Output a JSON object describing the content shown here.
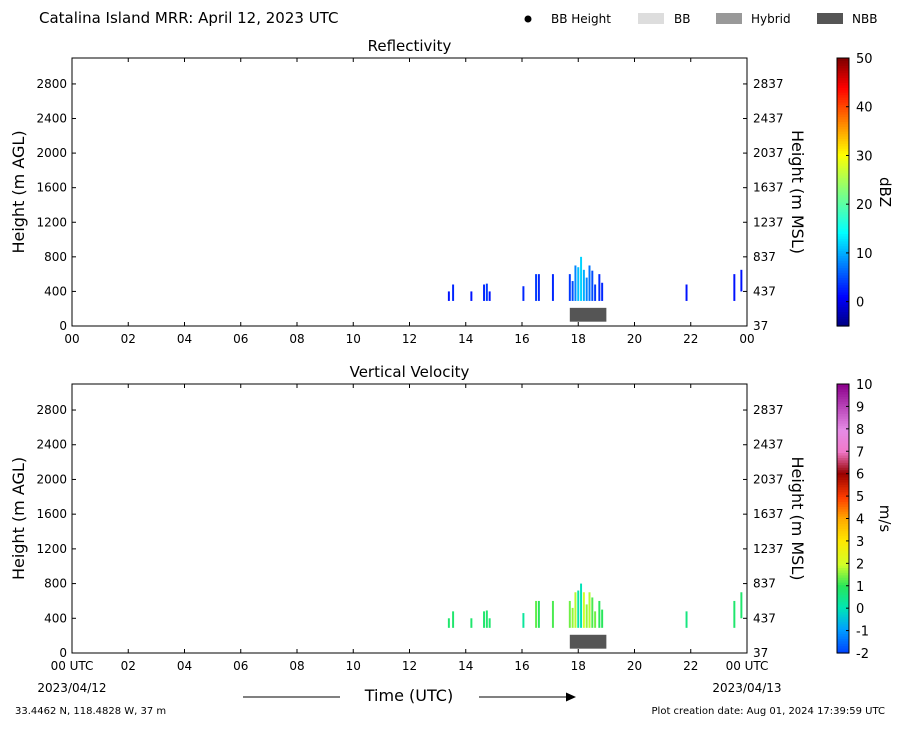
{
  "header": {
    "title": "Catalina Island MRR:  April 12, 2023 UTC",
    "legend": [
      {
        "label": "BB Height",
        "kind": "dot",
        "color": "#000000"
      },
      {
        "label": "BB",
        "kind": "swatch",
        "color": "#dddddd"
      },
      {
        "label": "Hybrid",
        "kind": "swatch",
        "color": "#999999"
      },
      {
        "label": "NBB",
        "kind": "swatch",
        "color": "#555555"
      }
    ]
  },
  "footer": {
    "location": "33.4462 N, 118.4828 W, 37 m",
    "creation": "Plot creation date: Aug 01, 2024 17:39:59 UTC",
    "time_label": "Time (UTC)",
    "date_start": "2023/04/12",
    "date_end": "2023/04/13"
  },
  "chart_data": [
    {
      "type": "heatmap",
      "title": "Reflectivity",
      "xlabel": "",
      "ylabel": "Height (m AGL)",
      "ylabel_right": "Height (m MSL)",
      "xlim": [
        0,
        24
      ],
      "ylim": [
        0,
        3100
      ],
      "x_ticks": [
        "00",
        "02",
        "04",
        "06",
        "08",
        "10",
        "12",
        "14",
        "16",
        "18",
        "20",
        "22",
        "00"
      ],
      "y_ticks": [
        0,
        400,
        800,
        1200,
        1600,
        2000,
        2400,
        2800
      ],
      "y_ticks_right": [
        37,
        437,
        837,
        1237,
        1637,
        2037,
        2437,
        2837
      ],
      "colorbar": {
        "label": "dBZ",
        "min": -5,
        "max": 50,
        "ticks": [
          0,
          10,
          20,
          30,
          40,
          50
        ],
        "colormap": "jet"
      },
      "columns": [
        {
          "t": 13.4,
          "bottom": 290,
          "top": 400,
          "value": 2
        },
        {
          "t": 13.55,
          "bottom": 290,
          "top": 480,
          "value": 3
        },
        {
          "t": 14.2,
          "bottom": 290,
          "top": 400,
          "value": 2
        },
        {
          "t": 14.65,
          "bottom": 290,
          "top": 480,
          "value": 3
        },
        {
          "t": 14.75,
          "bottom": 290,
          "top": 490,
          "value": 4
        },
        {
          "t": 14.85,
          "bottom": 290,
          "top": 400,
          "value": 2
        },
        {
          "t": 16.05,
          "bottom": 290,
          "top": 460,
          "value": 3
        },
        {
          "t": 16.5,
          "bottom": 290,
          "top": 600,
          "value": 4
        },
        {
          "t": 16.6,
          "bottom": 290,
          "top": 600,
          "value": 3
        },
        {
          "t": 17.1,
          "bottom": 290,
          "top": 600,
          "value": 3
        },
        {
          "t": 17.7,
          "bottom": 290,
          "top": 600,
          "value": 4
        },
        {
          "t": 17.8,
          "bottom": 290,
          "top": 520,
          "value": 5
        },
        {
          "t": 17.9,
          "bottom": 290,
          "top": 700,
          "value": 8
        },
        {
          "t": 18.0,
          "bottom": 290,
          "top": 680,
          "value": 11
        },
        {
          "t": 18.1,
          "bottom": 290,
          "top": 800,
          "value": 12
        },
        {
          "t": 18.2,
          "bottom": 290,
          "top": 650,
          "value": 10
        },
        {
          "t": 18.3,
          "bottom": 290,
          "top": 560,
          "value": 8
        },
        {
          "t": 18.4,
          "bottom": 290,
          "top": 700,
          "value": 7
        },
        {
          "t": 18.5,
          "bottom": 290,
          "top": 640,
          "value": 5
        },
        {
          "t": 18.6,
          "bottom": 290,
          "top": 480,
          "value": 4
        },
        {
          "t": 18.75,
          "bottom": 290,
          "top": 600,
          "value": 3
        },
        {
          "t": 18.85,
          "bottom": 290,
          "top": 500,
          "value": 3
        },
        {
          "t": 21.85,
          "bottom": 290,
          "top": 480,
          "value": 2
        },
        {
          "t": 23.55,
          "bottom": 290,
          "top": 600,
          "value": 2
        },
        {
          "t": 23.8,
          "bottom": 400,
          "top": 650,
          "value": 2
        }
      ],
      "bright_band": {
        "type": "NBB",
        "t_start": 17.7,
        "t_end": 19.0,
        "bottom": 50,
        "top": 210
      }
    },
    {
      "type": "heatmap",
      "title": "Vertical Velocity",
      "xlabel": "Time (UTC)",
      "ylabel": "Height (m AGL)",
      "ylabel_right": "Height (m MSL)",
      "xlim": [
        0,
        24
      ],
      "ylim": [
        0,
        3100
      ],
      "x_ticks": [
        "00 UTC",
        "02",
        "04",
        "06",
        "08",
        "10",
        "12",
        "14",
        "16",
        "18",
        "20",
        "22",
        "00 UTC"
      ],
      "y_ticks": [
        0,
        400,
        800,
        1200,
        1600,
        2000,
        2400,
        2800
      ],
      "y_ticks_right": [
        37,
        437,
        837,
        1237,
        1637,
        2037,
        2437,
        2837
      ],
      "colorbar": {
        "label": "m/s",
        "min": -2,
        "max": 10,
        "ticks": [
          -2,
          -1,
          0,
          1,
          2,
          3,
          4,
          5,
          6,
          7,
          8,
          9,
          10
        ],
        "colormap": "velocity"
      },
      "columns": [
        {
          "t": 13.4,
          "bottom": 290,
          "top": 400,
          "value": 0.8
        },
        {
          "t": 13.55,
          "bottom": 290,
          "top": 480,
          "value": 0.8
        },
        {
          "t": 14.2,
          "bottom": 290,
          "top": 400,
          "value": 0.8
        },
        {
          "t": 14.65,
          "bottom": 290,
          "top": 480,
          "value": 0.8
        },
        {
          "t": 14.75,
          "bottom": 290,
          "top": 490,
          "value": 0.8
        },
        {
          "t": 14.85,
          "bottom": 290,
          "top": 400,
          "value": 0.8
        },
        {
          "t": 16.05,
          "bottom": 290,
          "top": 460,
          "value": 0.3
        },
        {
          "t": 16.5,
          "bottom": 290,
          "top": 600,
          "value": 1.3
        },
        {
          "t": 16.6,
          "bottom": 290,
          "top": 600,
          "value": 1.0
        },
        {
          "t": 17.1,
          "bottom": 290,
          "top": 600,
          "value": 1.2
        },
        {
          "t": 17.7,
          "bottom": 290,
          "top": 600,
          "value": 1.4
        },
        {
          "t": 17.8,
          "bottom": 290,
          "top": 520,
          "value": 1.6
        },
        {
          "t": 17.9,
          "bottom": 290,
          "top": 700,
          "value": 1.8
        },
        {
          "t": 18.0,
          "bottom": 290,
          "top": 720,
          "value": 0.2
        },
        {
          "t": 18.1,
          "bottom": 290,
          "top": 800,
          "value": 0.0
        },
        {
          "t": 18.2,
          "bottom": 290,
          "top": 700,
          "value": 2.0
        },
        {
          "t": 18.3,
          "bottom": 290,
          "top": 560,
          "value": 1.6
        },
        {
          "t": 18.4,
          "bottom": 290,
          "top": 700,
          "value": 1.8
        },
        {
          "t": 18.5,
          "bottom": 290,
          "top": 640,
          "value": 1.2
        },
        {
          "t": 18.6,
          "bottom": 290,
          "top": 480,
          "value": 1.4
        },
        {
          "t": 18.75,
          "bottom": 290,
          "top": 600,
          "value": 1.0
        },
        {
          "t": 18.85,
          "bottom": 290,
          "top": 500,
          "value": 1.0
        },
        {
          "t": 21.85,
          "bottom": 290,
          "top": 480,
          "value": 0.6
        },
        {
          "t": 23.55,
          "bottom": 290,
          "top": 600,
          "value": 0.8
        },
        {
          "t": 23.8,
          "bottom": 400,
          "top": 700,
          "value": 0.8
        }
      ],
      "bright_band": {
        "type": "NBB",
        "t_start": 17.7,
        "t_end": 19.0,
        "bottom": 50,
        "top": 210
      }
    }
  ]
}
